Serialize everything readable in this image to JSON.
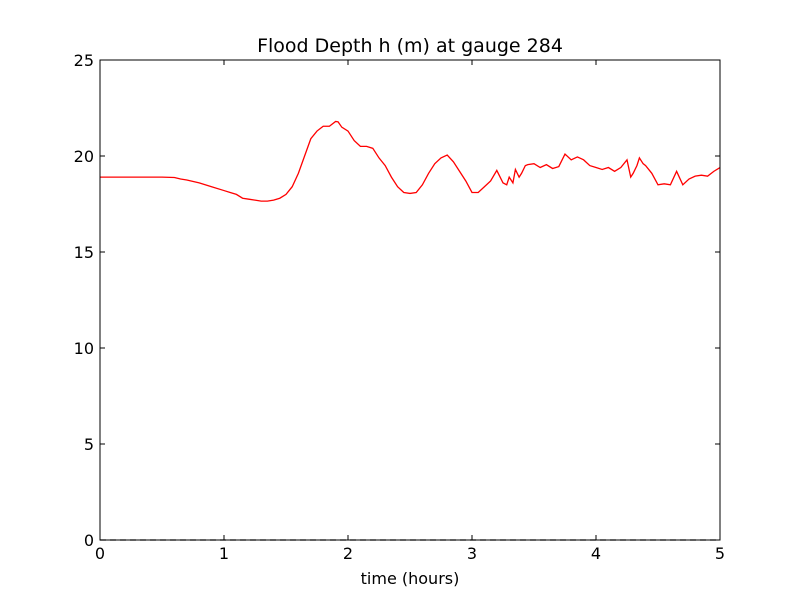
{
  "chart_data": {
    "type": "line",
    "title": "Flood Depth h (m) at gauge 284",
    "xlabel": "time (hours)",
    "ylabel": "",
    "xlim": [
      0,
      5
    ],
    "ylim": [
      0,
      25
    ],
    "xticks": [
      0,
      1,
      2,
      3,
      4,
      5
    ],
    "xtick_labels": [
      "0",
      "1",
      "2",
      "3",
      "4",
      "5"
    ],
    "yticks": [
      0,
      5,
      10,
      15,
      20,
      25
    ],
    "ytick_labels": [
      "0",
      "5",
      "10",
      "15",
      "20",
      "25"
    ],
    "grid": false,
    "legend": "none",
    "series": [
      {
        "color": "#ff0000",
        "style": "solid",
        "x": [
          0,
          0.1,
          0.2,
          0.3,
          0.4,
          0.5,
          0.6,
          0.65,
          0.7,
          0.8,
          0.9,
          1.0,
          1.05,
          1.1,
          1.15,
          1.2,
          1.25,
          1.3,
          1.35,
          1.4,
          1.45,
          1.5,
          1.55,
          1.6,
          1.65,
          1.7,
          1.75,
          1.8,
          1.85,
          1.9,
          1.92,
          1.95,
          2.0,
          2.05,
          2.1,
          2.15,
          2.2,
          2.25,
          2.3,
          2.35,
          2.4,
          2.45,
          2.5,
          2.55,
          2.6,
          2.65,
          2.7,
          2.75,
          2.8,
          2.85,
          2.9,
          2.95,
          3.0,
          3.05,
          3.1,
          3.15,
          3.2,
          3.25,
          3.28,
          3.3,
          3.33,
          3.35,
          3.38,
          3.4,
          3.43,
          3.45,
          3.5,
          3.55,
          3.6,
          3.65,
          3.7,
          3.75,
          3.8,
          3.85,
          3.9,
          3.95,
          4.0,
          4.05,
          4.1,
          4.15,
          4.2,
          4.25,
          4.28,
          4.3,
          4.33,
          4.35,
          4.38,
          4.4,
          4.45,
          4.5,
          4.55,
          4.6,
          4.65,
          4.7,
          4.75,
          4.8,
          4.85,
          4.9,
          4.95,
          5.0
        ],
        "y": [
          18.9,
          18.9,
          18.9,
          18.9,
          18.9,
          18.9,
          18.88,
          18.8,
          18.75,
          18.6,
          18.4,
          18.2,
          18.1,
          18.0,
          17.8,
          17.75,
          17.7,
          17.65,
          17.65,
          17.7,
          17.8,
          18.0,
          18.4,
          19.1,
          20.0,
          20.9,
          21.3,
          21.55,
          21.55,
          21.8,
          21.78,
          21.5,
          21.3,
          20.8,
          20.5,
          20.5,
          20.4,
          19.9,
          19.5,
          18.9,
          18.4,
          18.1,
          18.05,
          18.1,
          18.5,
          19.1,
          19.6,
          19.9,
          20.05,
          19.7,
          19.2,
          18.7,
          18.1,
          18.1,
          18.4,
          18.7,
          19.25,
          18.6,
          18.5,
          18.9,
          18.6,
          19.3,
          18.9,
          19.1,
          19.5,
          19.55,
          19.6,
          19.4,
          19.55,
          19.35,
          19.45,
          20.1,
          19.8,
          19.95,
          19.8,
          19.5,
          19.4,
          19.3,
          19.4,
          19.2,
          19.4,
          19.8,
          18.9,
          19.1,
          19.5,
          19.9,
          19.6,
          19.5,
          19.1,
          18.5,
          18.55,
          18.5,
          19.2,
          18.5,
          18.8,
          18.95,
          19.0,
          18.95,
          19.2,
          19.4
        ]
      },
      {
        "color": "#000000",
        "style": "dashed",
        "x": [
          0,
          5
        ],
        "y": [
          0,
          0
        ]
      }
    ]
  }
}
